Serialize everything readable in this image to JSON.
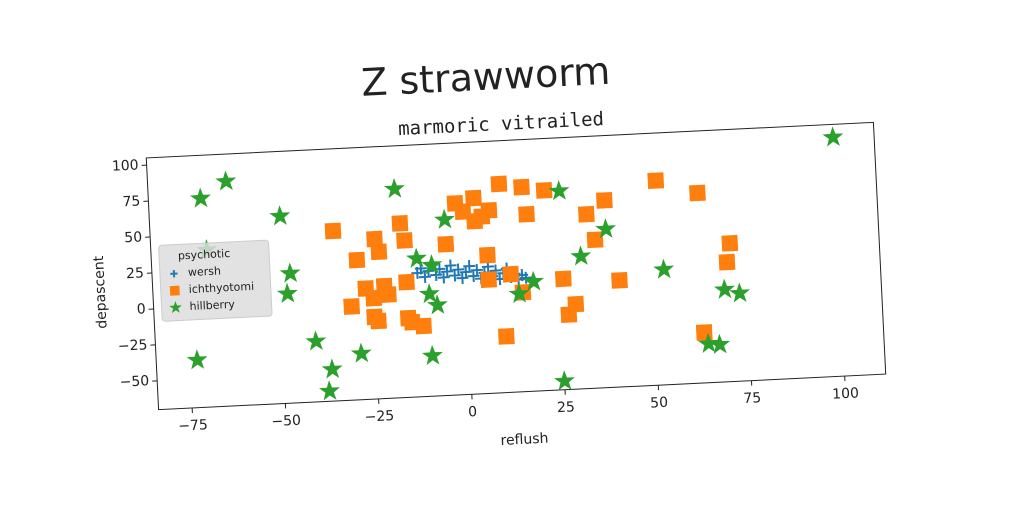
{
  "chart_data": {
    "type": "scatter",
    "title": "Z strawworm",
    "subtitle": "marmoric vitrailed",
    "x_label": "reflush",
    "y_label": "depascent",
    "xlim": [
      -84,
      111
    ],
    "ylim": [
      -70,
      105
    ],
    "xticks": [
      {
        "value": -75,
        "label": "−75"
      },
      {
        "value": -50,
        "label": "−50"
      },
      {
        "value": -25,
        "label": "−25"
      },
      0,
      25,
      50,
      75,
      100
    ],
    "yticks": [
      {
        "value": -50,
        "label": "−50"
      },
      {
        "value": -25,
        "label": "−25"
      },
      0,
      25,
      50,
      75,
      100
    ],
    "legend_title": "psychotic",
    "legend_loc": "center left",
    "series": [
      {
        "name": "wersh",
        "color": "#1f77b4",
        "marker": "plus",
        "x": [
          -13,
          -12,
          -11,
          -10,
          -9,
          -8,
          -7,
          -6,
          -5,
          -4,
          -3,
          -2,
          -1,
          0,
          1,
          2,
          3,
          4,
          5,
          6,
          7,
          8,
          9,
          10,
          11,
          12,
          13,
          14,
          15,
          16
        ],
        "values": [
          16,
          19,
          13,
          17,
          21,
          14,
          18,
          12,
          16,
          20,
          13,
          17,
          11,
          15,
          19,
          12,
          16,
          10,
          14,
          18,
          11,
          15,
          9,
          13,
          16,
          10,
          12,
          8,
          11,
          9
        ]
      },
      {
        "name": "ichthyotomi",
        "color": "#ff7f0e",
        "marker": "square",
        "x": [
          -35,
          -29,
          -24,
          -23,
          -17,
          -16,
          -27,
          -22,
          -21,
          -16,
          -31,
          -25,
          -25,
          -24,
          -16,
          -15,
          -12,
          -5,
          -2,
          3,
          0,
          3,
          5,
          7,
          10,
          16,
          22,
          17,
          6,
          6,
          12,
          15,
          10,
          26,
          29,
          27,
          33,
          38,
          35,
          41,
          52,
          63,
          71,
          70,
          63
        ],
        "values": [
          48,
          27,
          41,
          32,
          51,
          39,
          7,
          8,
          2,
          10,
          -5,
          0,
          -13,
          -16,
          -15,
          -18,
          -21,
          35,
          63,
          66,
          57,
          50,
          53,
          57,
          75,
          72,
          69,
          53,
          26,
          9,
          12,
          -1,
          -31,
          7,
          -11,
          -18,
          51,
          60,
          33,
          4,
          72,
          62,
          26,
          13,
          -35
        ]
      },
      {
        "name": "hillberry",
        "color": "#2ca02c",
        "marker": "star",
        "x": [
          100,
          -70,
          -63,
          -49,
          -69,
          -47,
          -48,
          -73,
          -41,
          -37,
          -38,
          -29,
          -18,
          -5,
          -13,
          -9,
          -10,
          -8,
          -10,
          26,
          18,
          14,
          25,
          31,
          38,
          53,
          69,
          73,
          64,
          67
        ],
        "values": [
          96,
          75,
          86,
          60,
          39,
          20,
          6,
          -37,
          -28,
          -48,
          -63,
          -38,
          75,
          52,
          26,
          21,
          1,
          -7,
          -42,
          68,
          6,
          -2,
          -64,
          22,
          40,
          10,
          -6,
          -9,
          -43,
          -44
        ]
      }
    ]
  }
}
